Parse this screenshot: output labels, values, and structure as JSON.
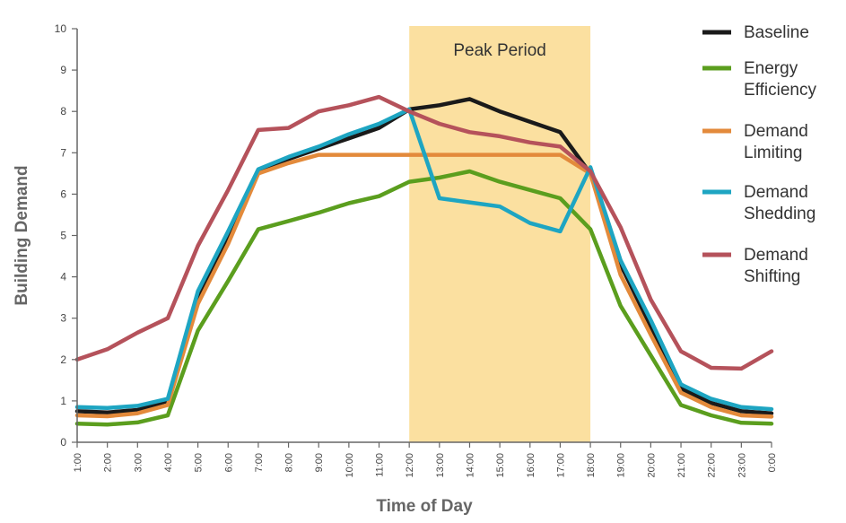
{
  "chart_data": {
    "type": "line",
    "x": [
      "1:00",
      "2:00",
      "3:00",
      "4:00",
      "5:00",
      "6:00",
      "7:00",
      "8:00",
      "9:00",
      "10:00",
      "11:00",
      "12:00",
      "13:00",
      "14:00",
      "15:00",
      "16:00",
      "17:00",
      "18:00",
      "19:00",
      "20:00",
      "21:00",
      "22:00",
      "23:00",
      "0:00"
    ],
    "xlabel": "Time of Day",
    "ylabel": "Building Demand",
    "ylim": [
      0,
      10
    ],
    "yticks": [
      "0",
      "1",
      "2",
      "3",
      "4",
      "5",
      "6",
      "7",
      "8",
      "9",
      "10"
    ],
    "grid": false,
    "legend_position": "top-right",
    "highlight": {
      "label": "Peak Period",
      "from": "12:00",
      "to": "18:00",
      "color": "#fbe0a0"
    },
    "series": [
      {
        "name": "Baseline",
        "color": "#1a1a1a",
        "values": [
          0.75,
          0.72,
          0.78,
          1.0,
          3.5,
          5.0,
          6.55,
          6.85,
          7.1,
          7.35,
          7.6,
          8.05,
          8.15,
          8.3,
          8.0,
          7.75,
          7.5,
          6.5,
          4.3,
          2.8,
          1.3,
          0.95,
          0.75,
          0.7
        ]
      },
      {
        "name": "Energy Efficiency",
        "color": "#5b9e1e",
        "values": [
          0.45,
          0.43,
          0.48,
          0.65,
          2.7,
          3.9,
          5.15,
          5.35,
          5.55,
          5.78,
          5.95,
          6.3,
          6.4,
          6.55,
          6.3,
          6.1,
          5.9,
          5.15,
          3.3,
          2.1,
          0.9,
          0.65,
          0.47,
          0.45
        ]
      },
      {
        "name": "Demand Limiting",
        "color": "#e38a3b",
        "values": [
          0.65,
          0.63,
          0.7,
          0.9,
          3.35,
          4.8,
          6.5,
          6.75,
          6.95,
          6.95,
          6.95,
          6.95,
          6.95,
          6.95,
          6.95,
          6.95,
          6.95,
          6.5,
          4.05,
          2.6,
          1.2,
          0.85,
          0.65,
          0.62
        ]
      },
      {
        "name": "Demand Shedding",
        "color": "#1ea5c2",
        "values": [
          0.85,
          0.83,
          0.88,
          1.05,
          3.65,
          5.1,
          6.6,
          6.9,
          7.15,
          7.45,
          7.7,
          8.05,
          5.9,
          5.8,
          5.7,
          5.3,
          5.1,
          6.65,
          4.4,
          2.95,
          1.4,
          1.05,
          0.85,
          0.8
        ]
      },
      {
        "name": "Demand Shifting",
        "color": "#b5525b",
        "values": [
          2.0,
          2.25,
          2.65,
          3.0,
          4.75,
          6.1,
          7.55,
          7.6,
          8.0,
          8.15,
          8.35,
          8.0,
          7.7,
          7.5,
          7.4,
          7.25,
          7.15,
          6.55,
          5.2,
          3.45,
          2.2,
          1.8,
          1.78,
          2.2
        ]
      }
    ]
  }
}
